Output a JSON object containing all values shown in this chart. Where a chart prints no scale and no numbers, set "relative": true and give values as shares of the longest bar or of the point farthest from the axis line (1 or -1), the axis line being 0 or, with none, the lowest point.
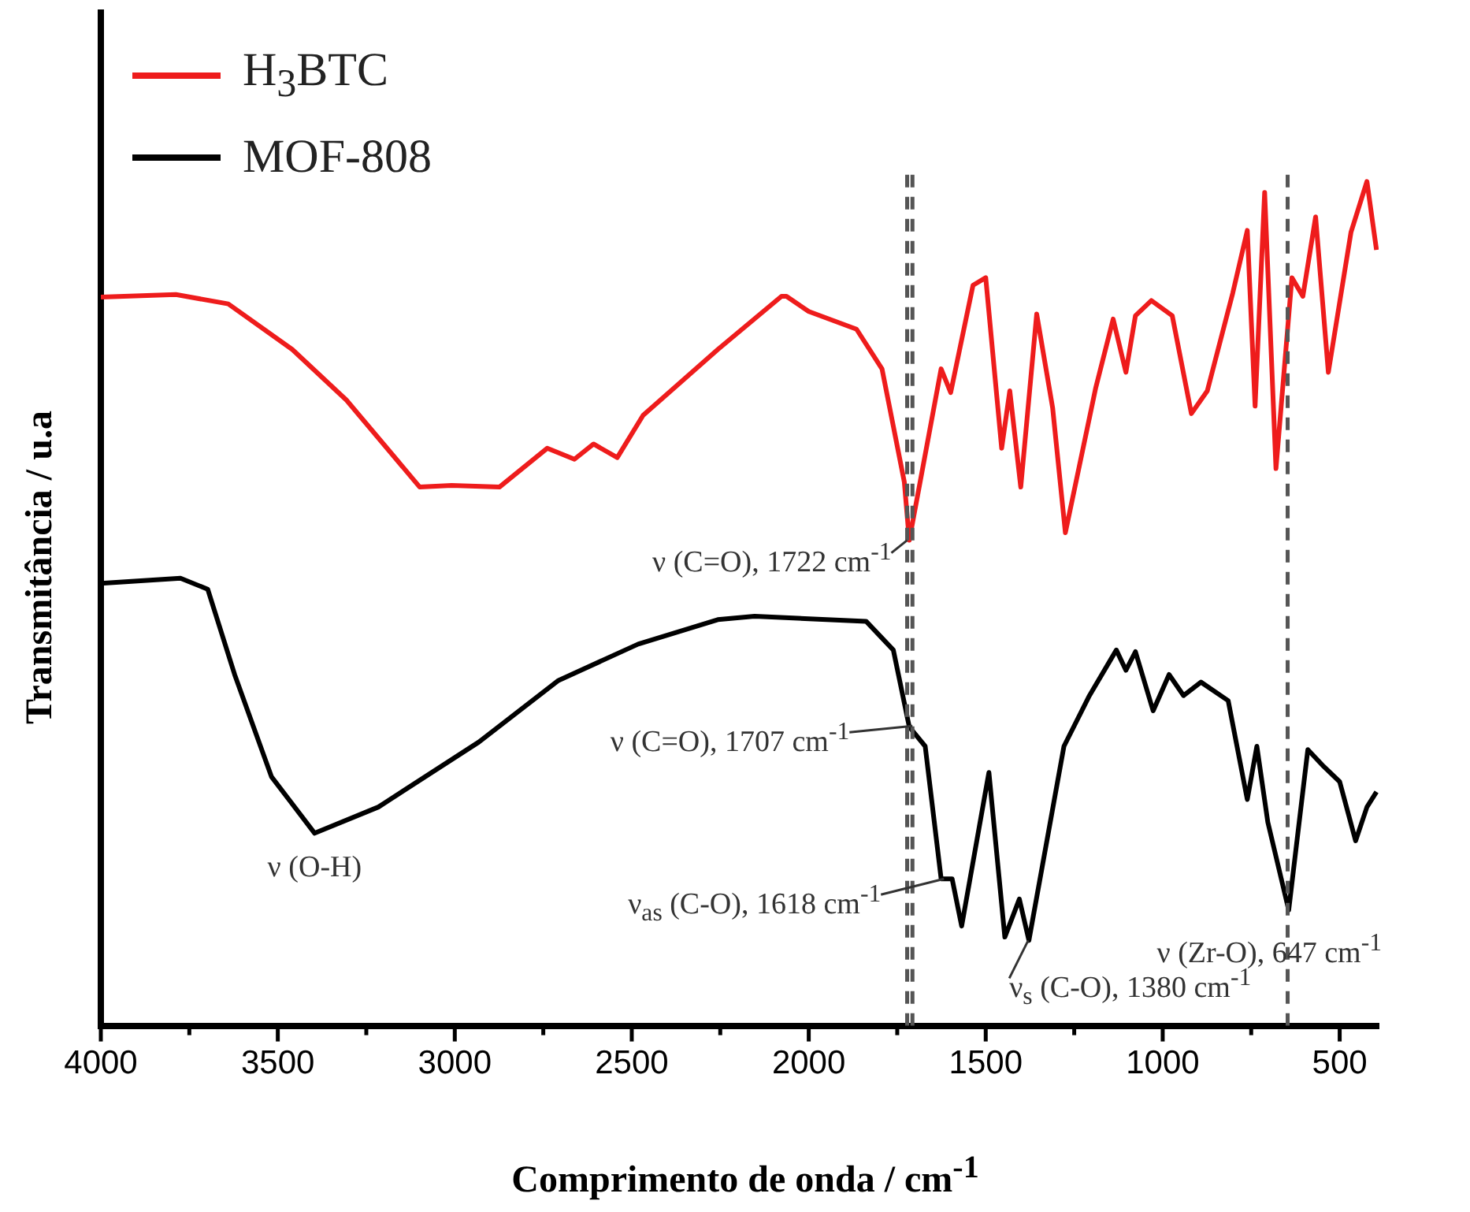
{
  "chart_data": {
    "type": "line",
    "relative": true,
    "xlabel": "Comprimento de onda / cm$^{-1}$",
    "ylabel": "Transmitância / u.a",
    "legend": "top left",
    "marker": "none",
    "line_style": "solid",
    "grid": false,
    "xlim": [
      4000,
      390
    ],
    "xticks": [
      4000,
      {
        "value": 3750,
        "label": null
      },
      3500,
      {
        "value": 3250,
        "label": null
      },
      3000,
      {
        "value": 2750,
        "label": null
      },
      2500,
      {
        "value": 2250,
        "label": null
      },
      2000,
      {
        "value": 1750,
        "label": null
      },
      1500,
      {
        "value": 1250,
        "label": null
      },
      1000,
      {
        "value": 750,
        "label": null
      },
      500
    ],
    "series": [
      {
        "name": "H$_{3}$BTC",
        "color": "#ee1c1c",
        "x": [
          4000,
          3788,
          3640,
          3459,
          3306,
          3099,
          3009,
          2874,
          2739,
          2662,
          2608,
          2541,
          2468,
          2257,
          2077,
          2063,
          2000,
          1865,
          1793,
          1730,
          1716,
          1626,
          1599,
          1536,
          1500,
          1455,
          1432,
          1401,
          1356,
          1311,
          1275,
          1189,
          1140,
          1104,
          1077,
          1032,
          973,
          919,
          874,
          802,
          761,
          739,
          712,
          680,
          635,
          604,
          568,
          532,
          468,
          423,
          396
        ],
        "values": [
          0.863,
          0.866,
          0.855,
          0.801,
          0.741,
          0.638,
          0.64,
          0.638,
          0.684,
          0.671,
          0.689,
          0.673,
          0.723,
          0.801,
          0.864,
          0.864,
          0.846,
          0.825,
          0.778,
          0.644,
          0.575,
          0.778,
          0.75,
          0.877,
          0.886,
          0.684,
          0.752,
          0.638,
          0.843,
          0.732,
          0.584,
          0.756,
          0.837,
          0.774,
          0.841,
          0.859,
          0.841,
          0.725,
          0.752,
          0.868,
          0.942,
          0.734,
          0.987,
          0.66,
          0.886,
          0.864,
          0.958,
          0.774,
          0.94,
          1,
          0.919
        ]
      },
      {
        "name": "MOF-808",
        "color": "#000000",
        "x": [
          4000,
          3775,
          3698,
          3622,
          3518,
          3396,
          3216,
          2932,
          2707,
          2482,
          2257,
          2153,
          1838,
          1761,
          1716,
          1671,
          1626,
          1595,
          1568,
          1491,
          1446,
          1405,
          1378,
          1279,
          1207,
          1131,
          1104,
          1077,
          1027,
          982,
          941,
          892,
          815,
          761,
          734,
          703,
          644,
          590,
          545,
          500,
          455,
          423,
          396
        ],
        "values": [
          0.524,
          0.53,
          0.517,
          0.416,
          0.295,
          0.228,
          0.259,
          0.336,
          0.409,
          0.452,
          0.481,
          0.485,
          0.479,
          0.445,
          0.354,
          0.331,
          0.174,
          0.174,
          0.118,
          0.3,
          0.105,
          0.15,
          0.101,
          0.331,
          0.391,
          0.445,
          0.421,
          0.443,
          0.373,
          0.416,
          0.391,
          0.407,
          0.385,
          0.268,
          0.331,
          0.241,
          0.137,
          0.327,
          0.307,
          0.289,
          0.219,
          0.259,
          0.277
        ]
      }
    ],
    "ref_lines": [
      {
        "axis": "x",
        "value": 1722,
        "color": "#555555",
        "line_style": "dashed"
      },
      {
        "axis": "x",
        "value": 1707,
        "color": "#555555",
        "line_style": "dashed"
      },
      {
        "axis": "x",
        "value": 647,
        "color": "#555555",
        "line_style": "dashed"
      }
    ],
    "annotations": [
      {
        "text": "ν (C=O), 1722 cm$^{-1}$",
        "x": 1722,
        "y": 0.575
      },
      {
        "text": "ν (C=O), 1707 cm$^{-1}$",
        "x": 1707,
        "y": 0.355
      },
      {
        "text": "ν (O-H)",
        "x": 3396,
        "y": 0.228
      },
      {
        "text": "ν$_{as}$ (C-O), 1618 cm$^{-1}$",
        "x": 1618,
        "y": 0.174
      },
      {
        "text": "ν$_{s}$ (C-O), 1380 cm$^{-1}$",
        "x": 1380,
        "y": 0.101
      },
      {
        "text": "ν (Zr-O), 647 cm$^{-1}$",
        "x": 647,
        "y": 0.137
      }
    ]
  }
}
